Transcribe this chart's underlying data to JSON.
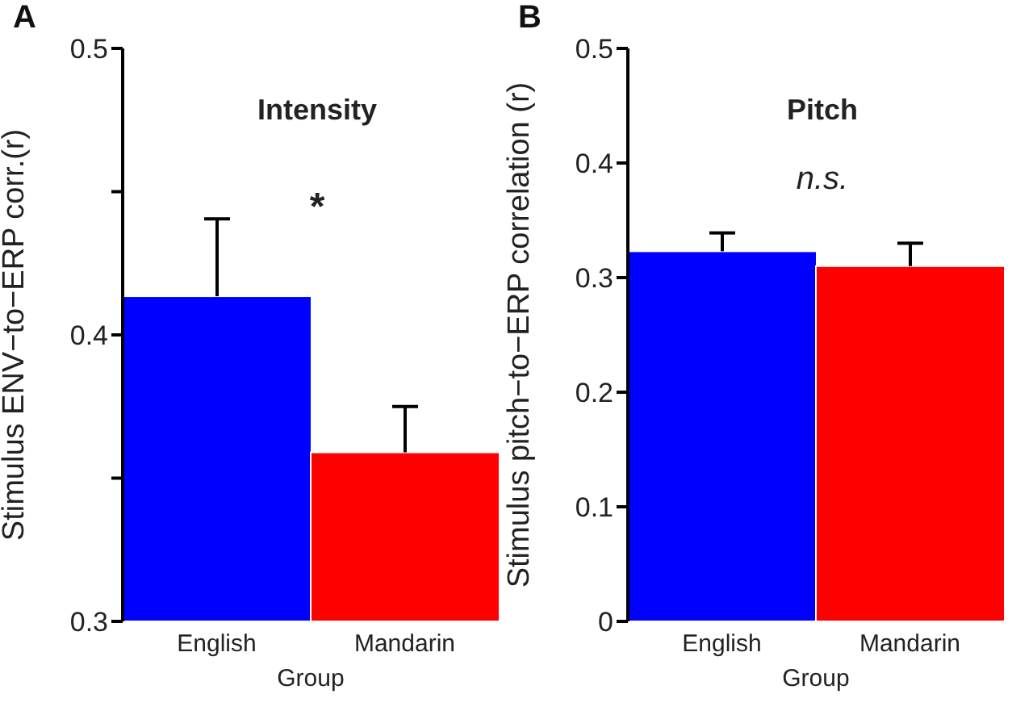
{
  "chart_data": [
    {
      "type": "bar",
      "title": "Intensity",
      "xlabel": "Group",
      "ylabel": "Stimulus ENV−to−ERP corr.(r)",
      "categories": [
        "English",
        "Mandarin"
      ],
      "values": [
        0.4135,
        0.359
      ],
      "colors": [
        "#0000ff",
        "#ff0000"
      ],
      "errors": [
        [
          0.4135,
          0.4405
        ],
        [
          0.359,
          0.375
        ]
      ],
      "ylim": [
        0.3,
        0.5
      ],
      "yticks": [
        0.3,
        {
          "value": 0.35,
          "label": null
        },
        0.4,
        {
          "value": 0.45,
          "label": null
        },
        0.5
      ],
      "grid": false,
      "legend": false,
      "annotations": [
        "A",
        "*"
      ]
    },
    {
      "type": "bar",
      "title": "Pitch",
      "xlabel": "Group",
      "ylabel": "Stimulus pitch−to−ERP correlation (r)",
      "categories": [
        "English",
        "Mandarin"
      ],
      "values": [
        0.323,
        0.31
      ],
      "colors": [
        "#0000ff",
        "#ff0000"
      ],
      "errors": [
        [
          0.323,
          0.339
        ],
        [
          0.31,
          0.33
        ]
      ],
      "ylim": [
        0,
        0.5
      ],
      "yticks": [
        0,
        0.1,
        0.2,
        0.3,
        0.4,
        0.5
      ],
      "grid": false,
      "legend": false,
      "annotations": [
        "B",
        "n.s."
      ]
    }
  ]
}
